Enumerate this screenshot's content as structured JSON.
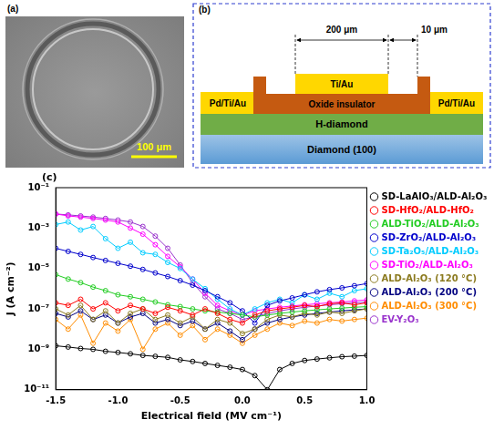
{
  "panels": {
    "a": {
      "label": "(a)",
      "scale_bar": "100 μm"
    },
    "b": {
      "label": "(b)",
      "layers": {
        "substrate": "Diamond (100)",
        "channel": "H-diamond",
        "insulator": "Oxide insulator",
        "gate": "Ti/Au",
        "source": "Pd/Ti/Au",
        "drain": "Pd/Ti/Au"
      },
      "dimensions": {
        "gate_length": "200 μm",
        "gap": "10 μm"
      }
    },
    "c": {
      "label": "(c)"
    }
  },
  "chart_data": {
    "type": "line",
    "xlabel": "Electrical field (MV cm⁻¹)",
    "ylabel": "J (A cm⁻²)",
    "log": "y",
    "grid": false,
    "legend": "right",
    "xlim": [
      -1.5,
      1.0
    ],
    "xticks": [
      -1.5,
      {
        "value": -1.0,
        "label": "-1.0"
      },
      -0.5,
      {
        "value": 0.0,
        "label": "0.0"
      },
      0.5,
      {
        "value": 1.0,
        "label": "1.0"
      }
    ],
    "ylim": [
      1e-11,
      0.1
    ],
    "yticks": [
      {
        "value": 1e-11,
        "label": "10⁻¹¹"
      },
      {
        "value": 1e-09,
        "label": "10⁻⁹"
      },
      {
        "value": 1e-07,
        "label": "10⁻⁷"
      },
      {
        "value": 1e-05,
        "label": "10⁻⁵"
      },
      {
        "value": 0.001,
        "label": "10⁻³"
      },
      {
        "value": 0.1,
        "label": "10⁻¹"
      }
    ],
    "x": [
      -1.5,
      -1.4,
      -1.3,
      -1.2,
      -1.1,
      -1.0,
      -0.9,
      -0.8,
      -0.7,
      -0.6,
      -0.5,
      -0.4,
      -0.3,
      -0.2,
      -0.1,
      0.0,
      0.1,
      0.2,
      0.3,
      0.4,
      0.5,
      0.6,
      0.7,
      0.8,
      0.9,
      1.0
    ],
    "series": [
      {
        "name": "SD-LaAlO₃/ALD-Al₂O₃",
        "color": "#000000",
        "marker": "circle",
        "line_style": "solid",
        "values": [
          1.5e-09,
          1.3e-09,
          1.1e-09,
          1e-09,
          8e-10,
          7e-10,
          6e-10,
          5e-10,
          4.5e-10,
          4e-10,
          3e-10,
          2.5e-10,
          2e-10,
          1.6e-10,
          1.3e-10,
          1e-10,
          5e-11,
          1e-11,
          1e-10,
          2e-10,
          2.8e-10,
          3.3e-10,
          3.8e-10,
          4.3e-10,
          4.6e-10,
          5e-10
        ]
      },
      {
        "name": "SD-HfO₂/ALD-HfO₂",
        "color": "#ff0000",
        "marker": "circle",
        "line_style": "solid",
        "values": [
          2e-07,
          1.5e-07,
          3e-07,
          1e-07,
          2e-07,
          8e-08,
          1.5e-07,
          1e-07,
          6e-08,
          1.2e-07,
          8e-08,
          5e-08,
          1e-07,
          6e-08,
          3e-08,
          2e-08,
          5e-08,
          8e-08,
          1e-07,
          1.2e-07,
          1.5e-07,
          1.3e-07,
          1.8e-07,
          2e-07,
          1.6e-07,
          2e-07
        ]
      },
      {
        "name": "ALD-TiO₂/ALD-Al₂O₃",
        "color": "#22cc22",
        "marker": "circle",
        "line_style": "solid",
        "values": [
          5e-06,
          3e-06,
          2e-06,
          1.2e-06,
          8e-07,
          5e-07,
          4e-07,
          3e-07,
          2.2e-07,
          1.6e-07,
          1.3e-07,
          1e-07,
          8e-08,
          7e-08,
          6e-08,
          5e-08,
          4e-08,
          5e-08,
          6e-08,
          7e-08,
          8e-08,
          9e-08,
          1e-07,
          1.1e-07,
          1.2e-07,
          1.3e-07
        ]
      },
      {
        "name": "SD-ZrO₂/ALD-Al₂O₃",
        "color": "#0000cc",
        "marker": "circle",
        "line_style": "solid",
        "values": [
          0.0001,
          7e-05,
          5e-05,
          3.5e-05,
          2.5e-05,
          1.8e-05,
          1.3e-05,
          9e-06,
          6e-06,
          4e-06,
          2.5e-06,
          1.5e-06,
          8e-07,
          4e-07,
          2e-07,
          8e-08,
          2e-08,
          1.5e-07,
          2.5e-07,
          3.5e-07,
          5e-07,
          7e-07,
          9e-07,
          1.1e-06,
          1.4e-06,
          1.8e-06
        ]
      },
      {
        "name": "SD-Ta₂O₅/ALD-Al₂O₃",
        "color": "#00ccff",
        "marker": "circle",
        "line_style": "solid",
        "values": [
          0.0015,
          0.002,
          0.0008,
          0.0012,
          0.0003,
          0.0001,
          0.0002,
          6e-05,
          5e-05,
          2e-05,
          1e-05,
          3e-06,
          1e-06,
          3e-07,
          1e-07,
          5e-08,
          1e-07,
          2e-07,
          3e-07,
          2e-07,
          5e-07,
          3e-07,
          6e-07,
          4e-07,
          8e-07,
          1e-06
        ]
      },
      {
        "name": "SD-TiO₂/ALD-Al₂O₃",
        "color": "#ff00ff",
        "marker": "circle",
        "line_style": "solid",
        "values": [
          0.005,
          0.004,
          0.0035,
          0.003,
          0.0025,
          0.002,
          0.001,
          0.0005,
          0.00015,
          4e-05,
          1.2e-05,
          3e-06,
          6e-07,
          1.5e-07,
          8e-08,
          5e-08,
          8e-08,
          1e-07,
          1.2e-07,
          1.4e-07,
          1.6e-07,
          1.8e-07,
          2e-07,
          2.2e-07,
          2.5e-07,
          2.8e-07
        ]
      },
      {
        "name": "ALD-Al₂O₃ (120 °C)",
        "color": "#8b7a1f",
        "marker": "circle",
        "line_style": "solid",
        "values": [
          1e-07,
          5e-08,
          1.5e-07,
          3e-08,
          8e-08,
          2e-08,
          6e-08,
          1e-07,
          3e-08,
          5e-08,
          2e-08,
          4e-08,
          1e-08,
          3e-08,
          2e-08,
          6e-09,
          1e-08,
          3e-08,
          5e-08,
          4e-08,
          6e-08,
          5e-08,
          7e-08,
          6e-08,
          8e-08,
          1e-07
        ]
      },
      {
        "name": "ALD-Al₂O₃ (200 °C)",
        "color": "#000080",
        "marker": "circle",
        "line_style": "solid",
        "values": [
          6e-08,
          4e-08,
          8e-08,
          3e-08,
          5e-08,
          2e-08,
          4e-08,
          6e-08,
          2e-08,
          3e-08,
          1.5e-08,
          2.5e-08,
          1e-08,
          2e-08,
          8e-09,
          3e-09,
          1e-08,
          2e-08,
          3e-08,
          4e-08,
          5e-08,
          6e-08,
          7e-08,
          8e-08,
          9e-08,
          1e-07
        ]
      },
      {
        "name": "ALD-Al₂O₃ (300 °C)",
        "color": "#ff8c00",
        "marker": "circle",
        "line_style": "solid",
        "values": [
          3e-08,
          1e-08,
          5e-08,
          2e-09,
          2e-08,
          8e-09,
          3e-08,
          1e-09,
          1e-08,
          2e-08,
          5e-09,
          1.5e-08,
          3e-09,
          1e-08,
          5e-09,
          2e-09,
          5e-09,
          1e-08,
          2e-08,
          1.5e-08,
          2.5e-08,
          2e-08,
          3e-08,
          2.5e-08,
          3e-08,
          3.5e-08
        ]
      },
      {
        "name": "EV-Y₂O₃",
        "color": "#9933cc",
        "marker": "circle",
        "line_style": "solid",
        "values": [
          0.005,
          0.0045,
          0.004,
          0.0035,
          0.003,
          0.0025,
          0.002,
          0.0012,
          0.0004,
          0.0001,
          1.5e-05,
          2e-06,
          4e-07,
          1e-07,
          6e-08,
          3e-08,
          4e-08,
          6e-08,
          8e-08,
          1e-07,
          1.2e-07,
          1.4e-07,
          1.6e-07,
          1.8e-07,
          2e-07,
          2.2e-07
        ]
      }
    ]
  }
}
